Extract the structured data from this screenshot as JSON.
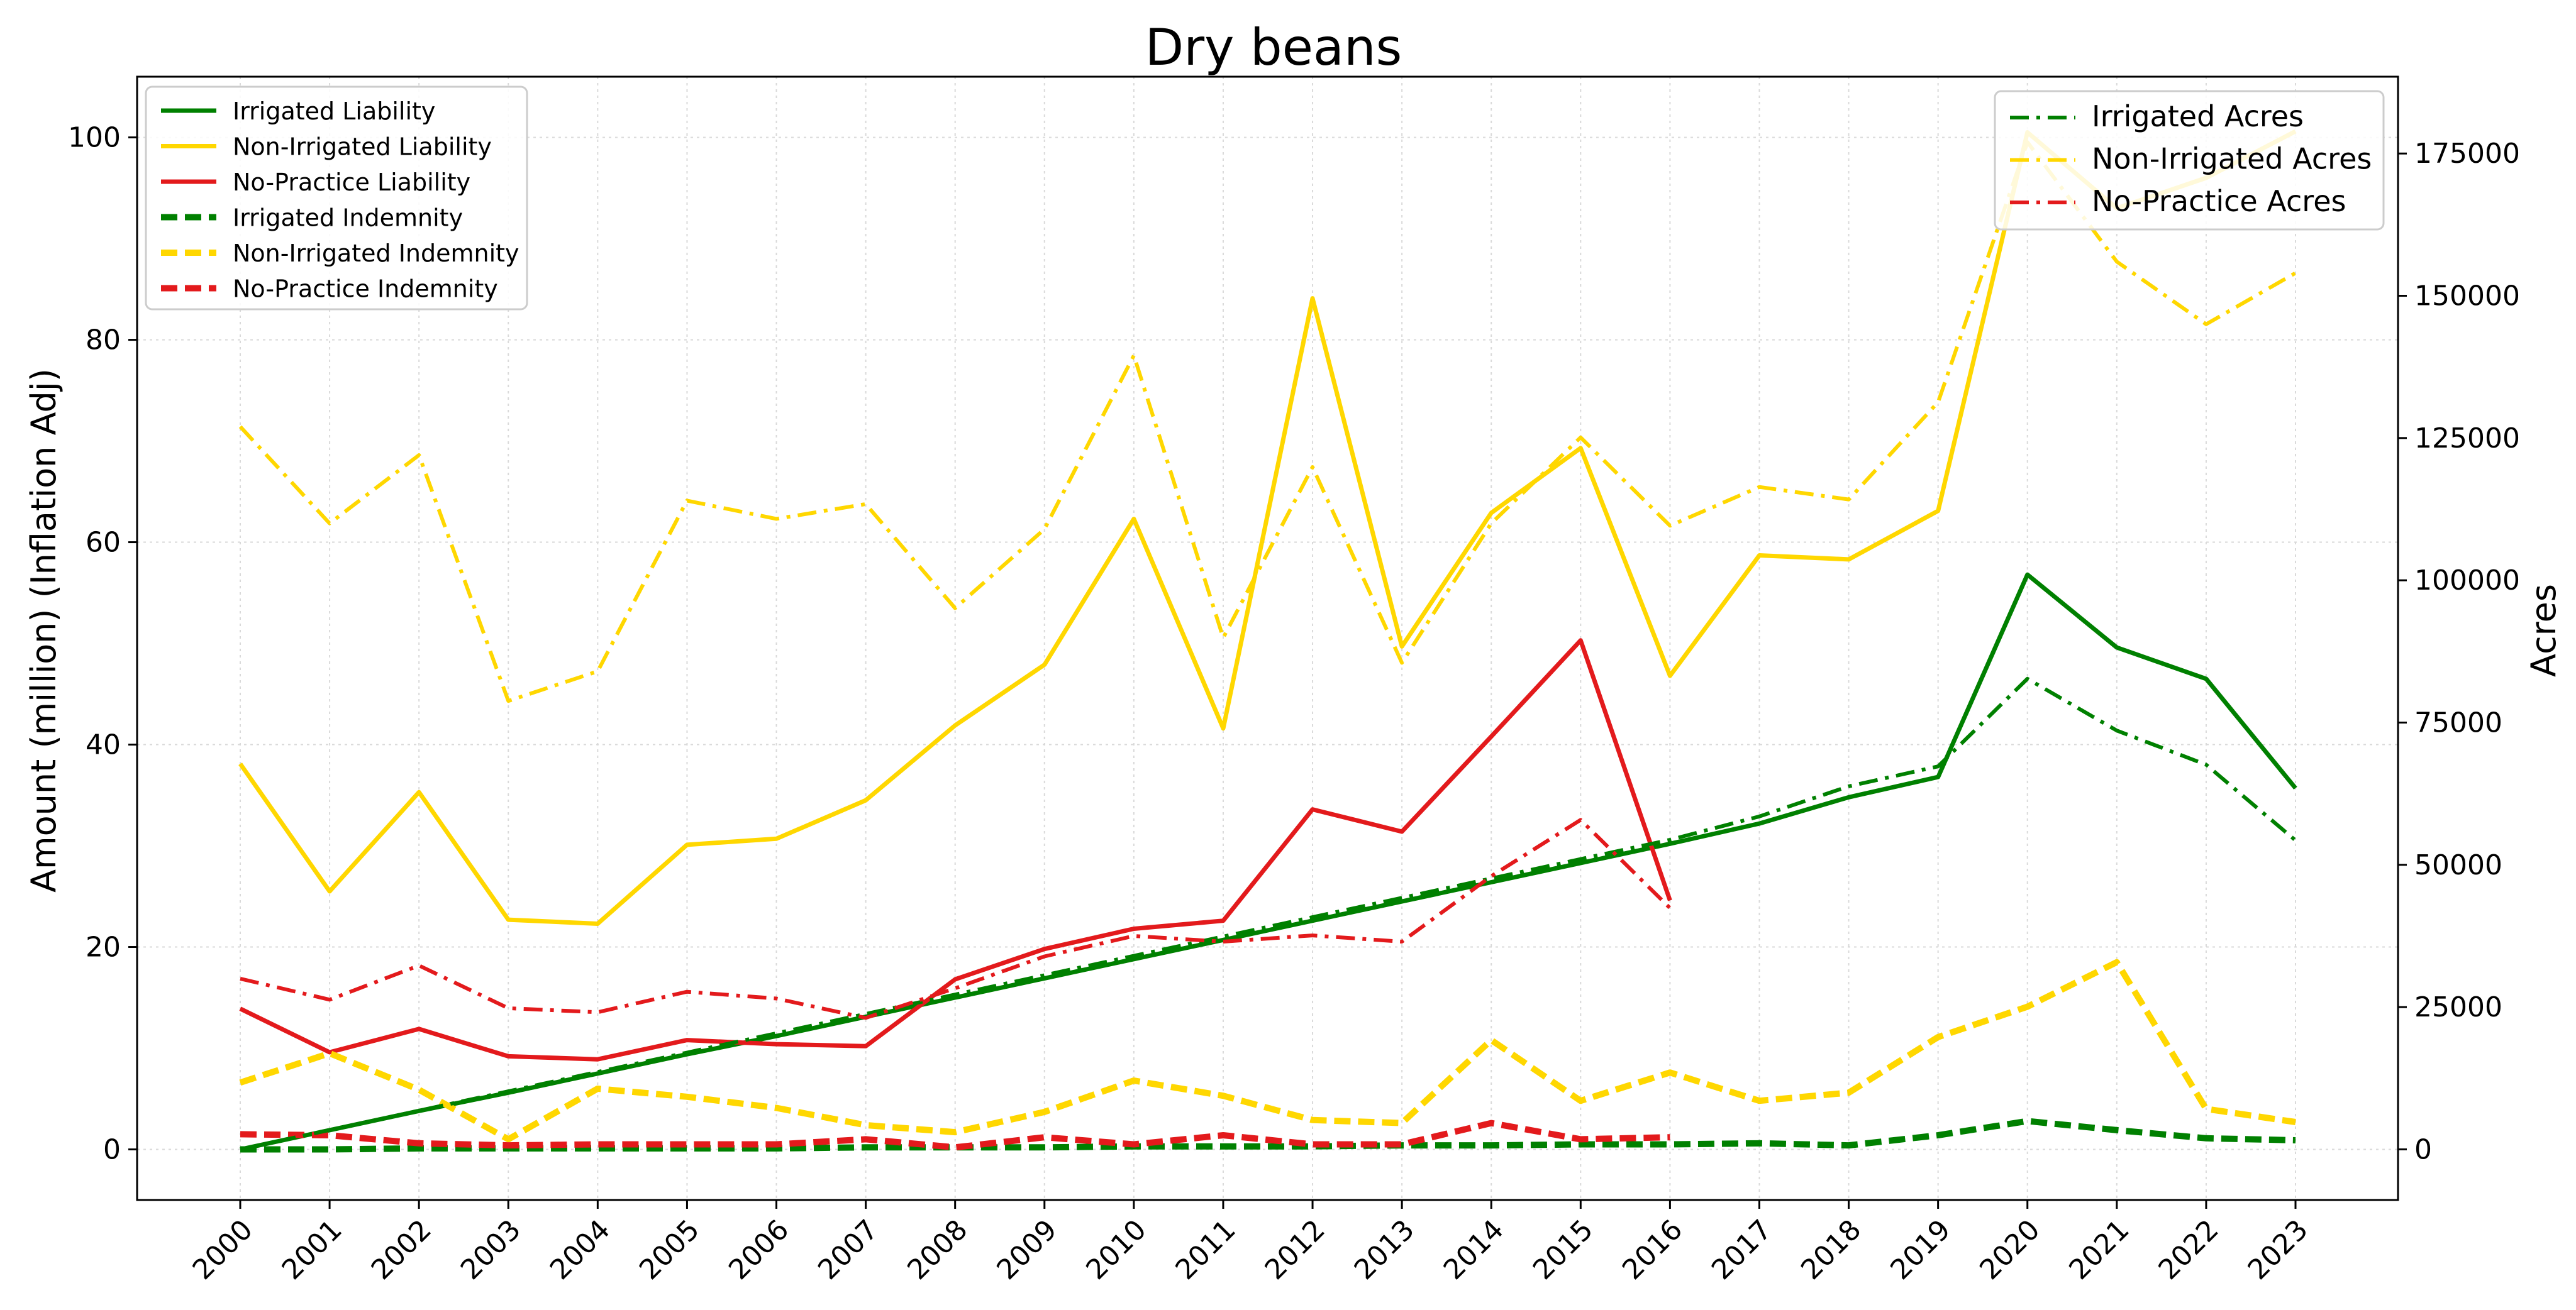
{
  "chart_data": {
    "type": "line",
    "title": "Dry beans",
    "xlabel": "",
    "ylabel": "Amount (million) (Inflation Adj)",
    "y2label": "Acres",
    "grid": true,
    "ylim": [
      -5,
      106
    ],
    "y2lim": [
      -8900,
      188500
    ],
    "x": [
      "2000",
      "2001",
      "2002",
      "2003",
      "2004",
      "2005",
      "2006",
      "2007",
      "2008",
      "2009",
      "2010",
      "2011",
      "2012",
      "2013",
      "2014",
      "2015",
      "2016",
      "2017",
      "2018",
      "2019",
      "2020",
      "2021",
      "2022",
      "2023"
    ],
    "y_ticks": [
      "0",
      "20",
      "40",
      "60",
      "80",
      "100"
    ],
    "y2_ticks": [
      "0",
      "25000",
      "50000",
      "75000",
      "100000",
      "125000",
      "150000",
      "175000"
    ],
    "legend_left_placement": "upper left",
    "legend_right_placement": "upper right",
    "colors": {
      "irrigated": "#008000",
      "non_irrigated": "#FFD700",
      "no_practice": "#E31A1C"
    },
    "series": [
      {
        "name": "Irrigated Liability",
        "axis": "left",
        "color": "#008000",
        "style": "solid",
        "values": [
          0,
          1.9,
          3.8,
          5.6,
          7.5,
          9.4,
          11.2,
          13.1,
          15.0,
          16.9,
          18.8,
          20.7,
          22.6,
          24.5,
          26.4,
          28.3,
          30.2,
          32.2,
          34.8,
          36.8,
          56.8,
          49.6,
          46.5,
          35.7
        ]
      },
      {
        "name": "Non-Irrigated Liability",
        "axis": "left",
        "color": "#FFD700",
        "style": "solid",
        "values": [
          38.1,
          25.5,
          35.3,
          22.7,
          22.3,
          30.1,
          30.7,
          34.5,
          41.9,
          47.9,
          62.3,
          41.6,
          84.1,
          49.7,
          62.9,
          69.3,
          46.8,
          58.7,
          58.3,
          63.1,
          100.5,
          93.0,
          96.0,
          100.6
        ]
      },
      {
        "name": "No-Practice Liability",
        "axis": "left",
        "color": "#E31A1C",
        "style": "solid",
        "values": [
          13.9,
          9.6,
          11.9,
          9.2,
          8.9,
          10.8,
          10.4,
          10.2,
          16.8,
          19.8,
          21.8,
          22.6,
          33.6,
          31.4,
          40.8,
          50.3,
          24.6,
          null,
          null,
          null,
          null,
          null,
          null,
          null
        ]
      },
      {
        "name": "Irrigated Indemnity",
        "axis": "left",
        "color": "#008000",
        "style": "dashed",
        "values": [
          0,
          0,
          0.1,
          0.1,
          0.1,
          0.1,
          0.1,
          0.2,
          0.2,
          0.2,
          0.3,
          0.3,
          0.3,
          0.4,
          0.4,
          0.5,
          0.5,
          0.6,
          0.4,
          1.4,
          2.8,
          1.9,
          1.1,
          0.9
        ]
      },
      {
        "name": "Non-Irrigated Indemnity",
        "axis": "left",
        "color": "#FFD700",
        "style": "dashed",
        "values": [
          6.6,
          9.5,
          5.9,
          1.0,
          6.0,
          5.2,
          4.1,
          2.4,
          1.7,
          3.7,
          6.8,
          5.3,
          2.9,
          2.6,
          10.8,
          4.8,
          7.6,
          4.8,
          5.6,
          11.1,
          14.1,
          18.5,
          4.0,
          2.7
        ]
      },
      {
        "name": "No-Practice Indemnity",
        "axis": "left",
        "color": "#E31A1C",
        "style": "dashed",
        "values": [
          1.5,
          1.4,
          0.6,
          0.4,
          0.5,
          0.5,
          0.5,
          1.0,
          0.2,
          1.2,
          0.5,
          1.4,
          0.5,
          0.5,
          2.6,
          1.0,
          1.2,
          null,
          null,
          null,
          null,
          null,
          null,
          null
        ]
      },
      {
        "name": "Irrigated Acres",
        "axis": "right",
        "color": "#008000",
        "style": "dashdot",
        "values": [
          0,
          3400,
          6800,
          10200,
          13600,
          17000,
          20400,
          23800,
          27200,
          30600,
          34000,
          37400,
          40800,
          44200,
          47600,
          51000,
          54400,
          58500,
          63800,
          67300,
          82700,
          73600,
          67600,
          54300
        ]
      },
      {
        "name": "Non-Irrigated Acres",
        "axis": "right",
        "color": "#FFD700",
        "style": "dashdot",
        "values": [
          127000,
          110000,
          122000,
          78800,
          84000,
          114000,
          110800,
          113400,
          95100,
          109000,
          139500,
          89900,
          119900,
          85500,
          110000,
          125100,
          109600,
          116400,
          114200,
          131300,
          177000,
          156000,
          145000,
          154000
        ]
      },
      {
        "name": "No-Practice Acres",
        "axis": "right",
        "color": "#E31A1C",
        "style": "dashdot",
        "values": [
          30000,
          26300,
          32300,
          24800,
          24100,
          27700,
          26500,
          23100,
          28300,
          33900,
          37500,
          36500,
          37600,
          36500,
          48000,
          57900,
          42400,
          null,
          null,
          null,
          null,
          null,
          null,
          null
        ]
      }
    ],
    "legend_left": [
      "Irrigated Liability",
      "Non-Irrigated Liability",
      "No-Practice Liability",
      "Irrigated Indemnity",
      "Non-Irrigated Indemnity",
      "No-Practice Indemnity"
    ],
    "legend_right": [
      "Irrigated Acres",
      "Non-Irrigated Acres",
      "No-Practice Acres"
    ]
  }
}
